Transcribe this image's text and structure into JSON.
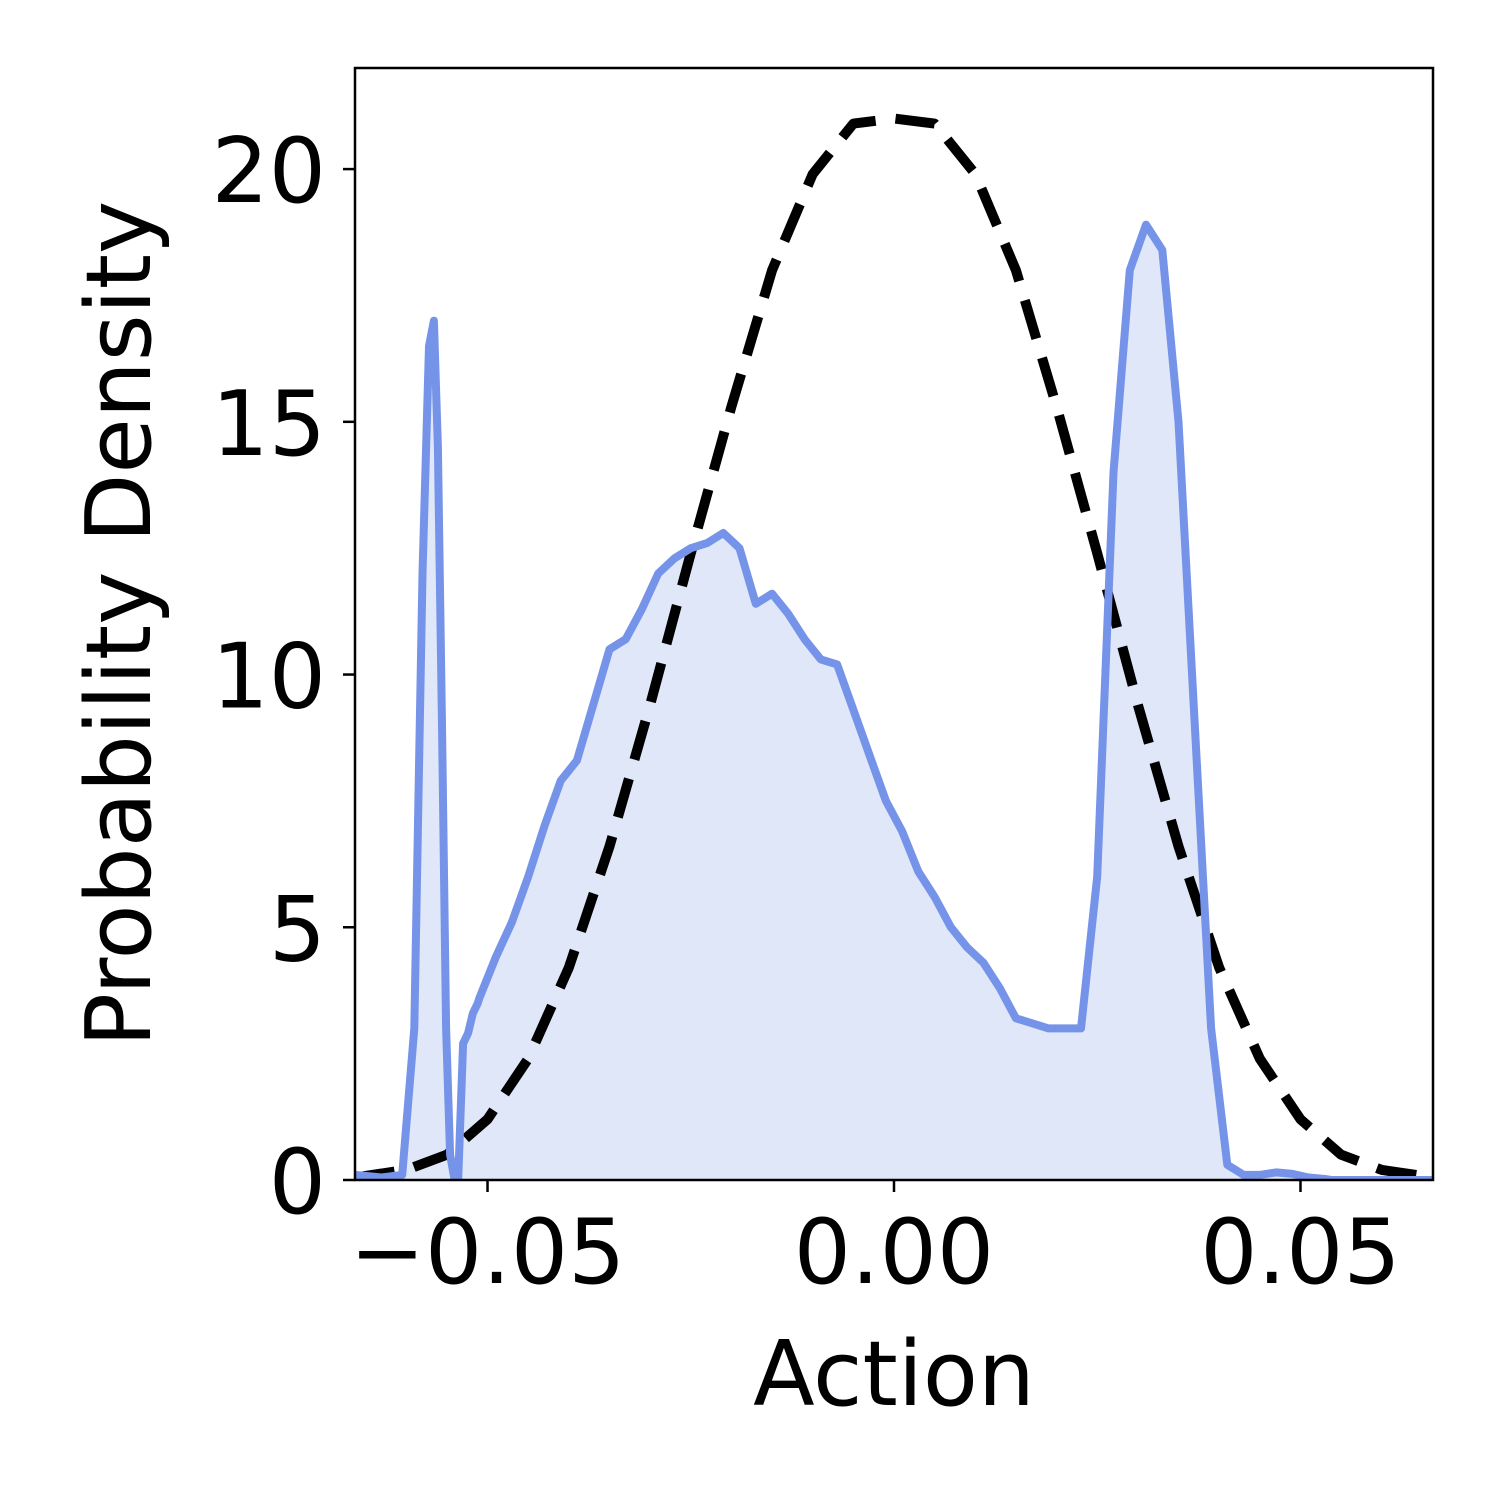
{
  "chart_data": {
    "type": "area",
    "title": "",
    "xlabel": "Action",
    "ylabel": "Probability Density",
    "xlim": [
      -0.0663,
      0.0663
    ],
    "ylim": [
      0,
      22
    ],
    "xticks": [
      -0.05,
      0.0,
      0.05
    ],
    "xtick_labels": [
      "−0.05",
      "0.00",
      "0.05"
    ],
    "yticks": [
      0,
      5,
      10,
      15,
      20
    ],
    "ytick_labels": [
      "0",
      "5",
      "10",
      "15",
      "20"
    ],
    "grid": false,
    "legend": "none",
    "colors": {
      "empirical": "#7593e8",
      "empirical_fill": "#dfe7f9",
      "reference": "#000000"
    },
    "series": [
      {
        "style": "solid-filled",
        "x": [
          -0.0663,
          -0.063,
          -0.0605,
          -0.059,
          -0.058,
          -0.0572,
          -0.0566,
          -0.0561,
          -0.0556,
          -0.0551,
          -0.0546,
          -0.0541,
          -0.0536,
          -0.053,
          -0.0524,
          -0.0518,
          -0.0512,
          -0.051,
          -0.051,
          -0.049,
          -0.047,
          -0.045,
          -0.043,
          -0.041,
          -0.039,
          -0.037,
          -0.035,
          -0.033,
          -0.031,
          -0.029,
          -0.027,
          -0.025,
          -0.023,
          -0.021,
          -0.019,
          -0.017,
          -0.015,
          -0.013,
          -0.011,
          -0.009,
          -0.007,
          -0.005,
          -0.003,
          -0.001,
          0.001,
          0.003,
          0.005,
          0.007,
          0.009,
          0.011,
          0.013,
          0.015,
          0.017,
          0.019,
          0.021,
          0.023,
          0.025,
          0.027,
          0.029,
          0.031,
          0.033,
          0.035,
          0.037,
          0.039,
          0.041,
          0.043,
          0.045,
          0.047,
          0.049,
          0.051,
          0.053,
          0.0538,
          0.054,
          0.0548,
          0.0556,
          0.0562,
          0.0567,
          0.0572,
          0.0578,
          0.0584,
          0.059,
          0.0596,
          0.0603,
          0.063,
          0.0663
        ],
        "y": [
          0.1,
          0.05,
          0.1,
          3.0,
          12.0,
          16.5,
          17.0,
          14.5,
          9.0,
          3.0,
          0.5,
          0.05,
          0.02,
          2.7,
          2.9,
          3.3,
          3.5,
          3.6,
          3.6,
          4.4,
          5.1,
          6.0,
          7.0,
          7.9,
          8.3,
          9.4,
          10.5,
          10.7,
          11.3,
          12.0,
          12.3,
          12.5,
          12.6,
          12.8,
          12.5,
          11.4,
          11.6,
          11.2,
          10.7,
          10.3,
          10.2,
          9.3,
          8.4,
          7.5,
          6.9,
          6.1,
          5.6,
          5.0,
          4.6,
          4.3,
          3.8,
          3.2,
          3.1,
          3.0,
          3.0,
          3.0,
          6.0,
          14.0,
          18.0,
          18.9,
          18.4,
          15.0,
          9.0,
          3.0,
          0.3,
          0.1,
          0.1,
          0.15,
          0.12,
          0.05,
          0.02,
          0.0,
          0.0,
          0.0,
          0.0,
          0.0,
          0.0,
          0.0,
          0.0,
          0.0,
          0.0,
          0.0,
          0.0,
          0.0,
          0.0
        ]
      },
      {
        "style": "dashed",
        "x": [
          -0.0663,
          -0.06,
          -0.055,
          -0.05,
          -0.045,
          -0.04,
          -0.035,
          -0.03,
          -0.025,
          -0.02,
          -0.015,
          -0.01,
          -0.005,
          0.0,
          0.005,
          0.01,
          0.015,
          0.02,
          0.025,
          0.03,
          0.035,
          0.04,
          0.045,
          0.05,
          0.055,
          0.06,
          0.0663
        ],
        "y": [
          0.05,
          0.2,
          0.5,
          1.2,
          2.4,
          4.2,
          6.6,
          9.4,
          12.4,
          15.3,
          18.0,
          19.9,
          20.9,
          21.0,
          20.9,
          19.9,
          18.0,
          15.3,
          12.4,
          9.4,
          6.6,
          4.2,
          2.4,
          1.2,
          0.5,
          0.2,
          0.05
        ]
      }
    ]
  }
}
